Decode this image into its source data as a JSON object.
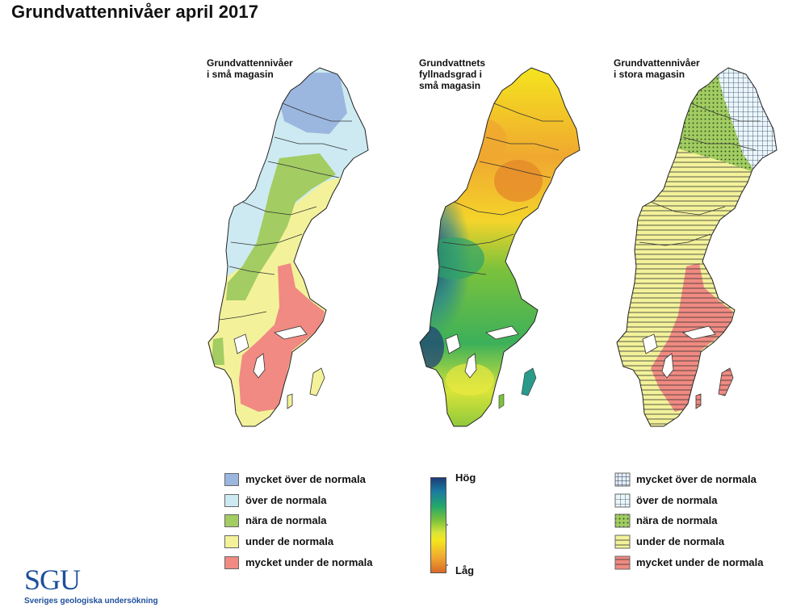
{
  "title": "Grundvattennivåer april 2017",
  "maps": [
    {
      "title": "Grundvattennivåer\ni små magasin"
    },
    {
      "title": "Grundvattnets\nfyllnadsgrad i\nsmå magasin"
    },
    {
      "title": "Grundvattennivåer\ni stora magasin"
    }
  ],
  "legend_small": [
    {
      "label": "mycket över de normala",
      "color": "#9bb7e0"
    },
    {
      "label": "över de normala",
      "color": "#cdeaf2"
    },
    {
      "label": "nära de normala",
      "color": "#a3cc62"
    },
    {
      "label": "under de normala",
      "color": "#f3f29a"
    },
    {
      "label": "mycket under de normala",
      "color": "#f08a82"
    }
  ],
  "legend_fill": {
    "high": "Hög",
    "low": "Låg"
  },
  "legend_large": [
    {
      "label": "mycket över de normala",
      "pattern": "grid-dense"
    },
    {
      "label": "över de normala",
      "pattern": "grid"
    },
    {
      "label": "nära de normala",
      "pattern": "dots"
    },
    {
      "label": "under de normala",
      "pattern": "hlines-yellow"
    },
    {
      "label": "mycket under de normala",
      "pattern": "hlines-red"
    }
  ],
  "logo": {
    "text": "SGU",
    "subtitle": "Sveriges geologiska undersökning"
  }
}
